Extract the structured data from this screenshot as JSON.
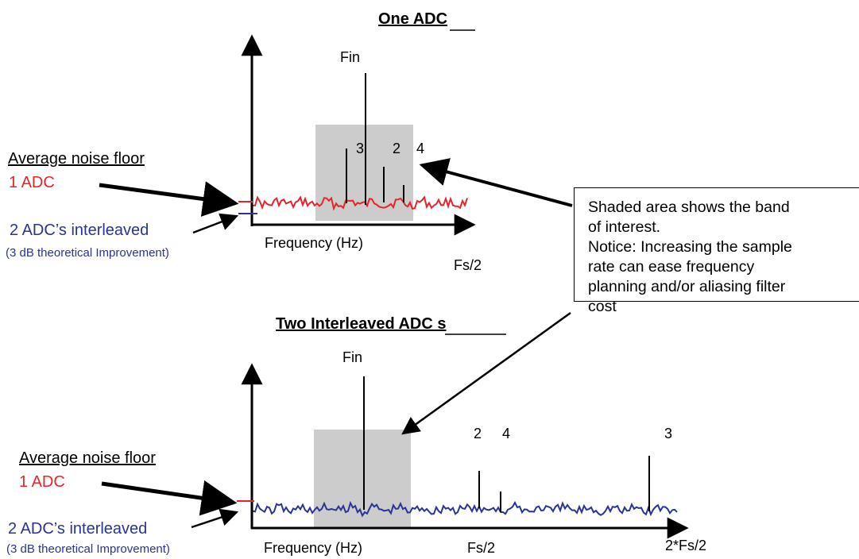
{
  "top_panel": {
    "title": "One ADC",
    "fin_label": "Fin",
    "harmonic_3": "3",
    "harmonic_2": "2",
    "harmonic_4": "4",
    "x_label": "Frequency (Hz)",
    "fs_label": "Fs/2"
  },
  "bottom_panel": {
    "title": "Two Interleaved ADC s",
    "fin_label": "Fin",
    "harmonic_2": "2",
    "harmonic_4": "4",
    "harmonic_3": "3",
    "x_label": "Frequency (Hz)",
    "fs_label": "Fs/2",
    "fs2_label": "2*Fs/2"
  },
  "legend_top": {
    "heading": "Average noise floor",
    "one_adc": "1 ADC",
    "two_adc": "2 ADC’s interleaved",
    "improvement": "(3 dB theoretical Improvement)"
  },
  "legend_bottom": {
    "heading": "Average noise floor",
    "one_adc": "1 ADC",
    "two_adc": "2 ADC’s interleaved",
    "improvement": "(3 dB theoretical Improvement)"
  },
  "callout": {
    "lines": [
      "Shaded area shows the band",
      "of interest.",
      "Notice: Increasing the sample",
      "rate can ease frequency",
      "planning and/or aliasing filter",
      "cost"
    ]
  },
  "colors": {
    "one_adc": "#e8232a",
    "two_adc": "#2a3398",
    "band": "#cccccc"
  }
}
